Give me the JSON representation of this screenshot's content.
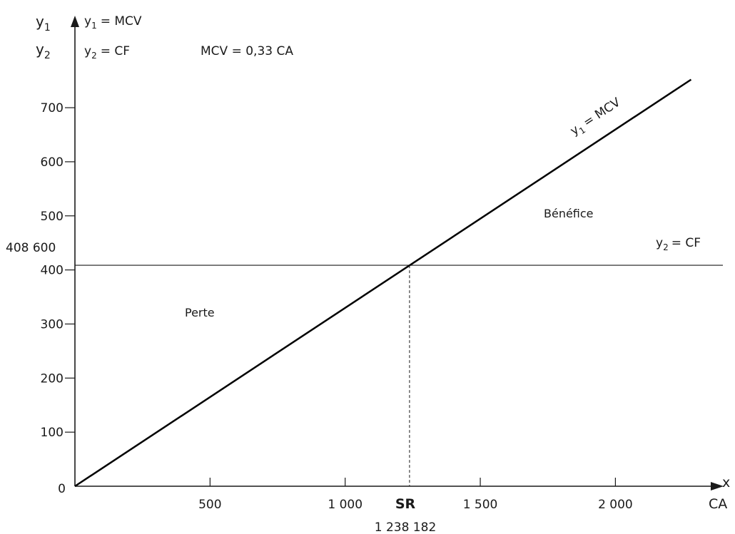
{
  "chart_data": {
    "type": "line",
    "x_axis": {
      "name": "x",
      "unit_label": "CA",
      "range": [
        0,
        2400
      ],
      "ticks": [
        {
          "value": 500,
          "label": "500"
        },
        {
          "value": 1000,
          "label": "1 000"
        },
        {
          "value": 1500,
          "label": "1 500"
        },
        {
          "value": 2000,
          "label": "2 000"
        }
      ]
    },
    "y_axis": {
      "range": [
        0,
        780
      ],
      "ticks": [
        {
          "value": 0,
          "label": "0"
        },
        {
          "value": 100,
          "label": "100"
        },
        {
          "value": 200,
          "label": "200"
        },
        {
          "value": 300,
          "label": "300"
        },
        {
          "value": 400,
          "label": "400"
        },
        {
          "value": 500,
          "label": "500"
        },
        {
          "value": 600,
          "label": "600"
        },
        {
          "value": 700,
          "label": "700"
        }
      ]
    },
    "legend": {
      "y1_base": "y",
      "y1_sub": "1",
      "y1_text": "= MCV",
      "y2_base": "y",
      "y2_sub": "2",
      "y2_text": "= CF",
      "equation": "MCV = 0,33 CA"
    },
    "axis_titles": {
      "y1_base": "y",
      "y1_sub": "1",
      "y2_base": "y",
      "y2_sub": "2"
    },
    "series": [
      {
        "key": "mcv",
        "label_base": "y",
        "label_sub": "1",
        "label_text": "= MCV",
        "x": [
          0,
          2280
        ],
        "y": [
          0,
          752
        ]
      },
      {
        "key": "cf",
        "label_base": "y",
        "label_sub": "2",
        "label_text": "= CF",
        "x": [
          0,
          2400
        ],
        "y": [
          408.6,
          408.6
        ]
      }
    ],
    "break_even": {
      "x": 1238.182,
      "y": 408.6,
      "x_label": "SR",
      "x_value_label": "1 238 182",
      "y_value_label": "408 600"
    },
    "annotations": {
      "profit": "Bénéfice",
      "loss": "Perte"
    }
  }
}
